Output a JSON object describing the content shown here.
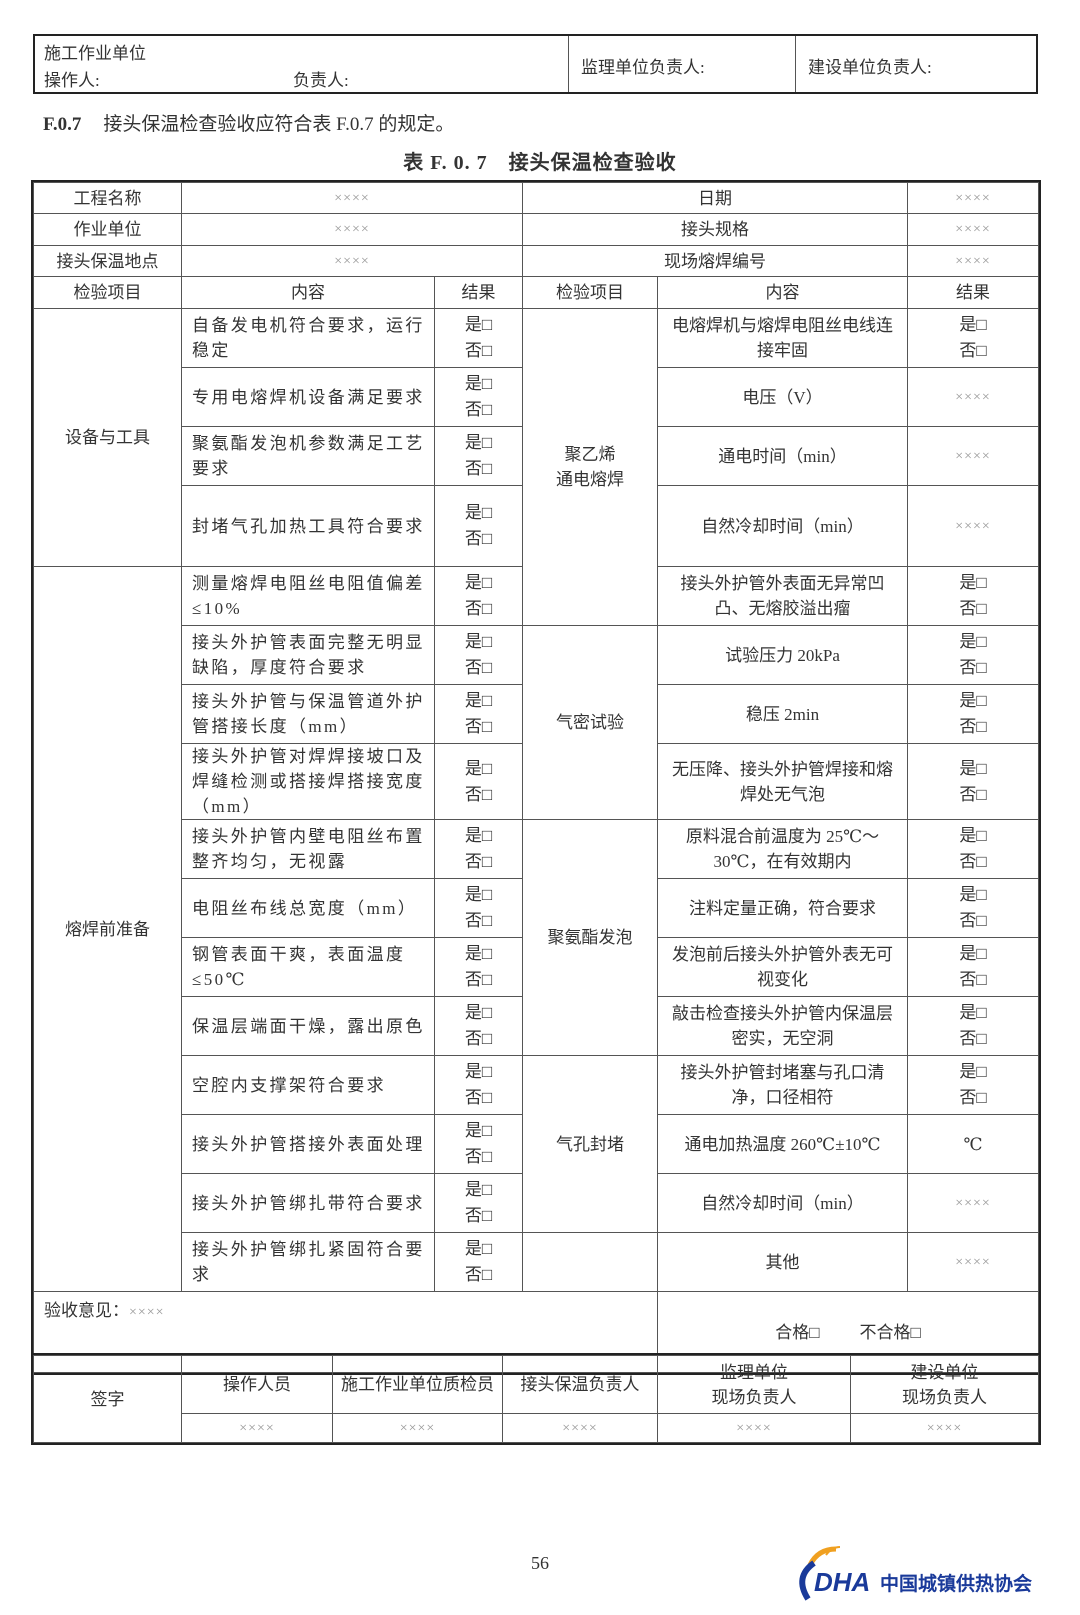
{
  "header_box": {
    "unit_label": "施工作业单位",
    "operator_label": "操作人:",
    "responsible_label": "负责人:",
    "supervisor_label": "监理单位负责人:",
    "owner_label": "建设单位负责人:"
  },
  "clause": {
    "number": "F.0.7",
    "text": "接头保温检查验收应符合表 F.0.7 的规定。"
  },
  "table_title": "表 F. 0. 7　接头保温检查验收",
  "info_rows": [
    {
      "label": "工程名称",
      "value": "××××",
      "label2": "日期",
      "value2": "××××"
    },
    {
      "label": "作业单位",
      "value": "××××",
      "label2": "接头规格",
      "value2": "××××"
    },
    {
      "label": "接头保温地点",
      "value": "××××",
      "label2": "现场熔焊编号",
      "value2": "××××"
    }
  ],
  "headers": [
    "检验项目",
    "内容",
    "结果",
    "检验项目",
    "内容",
    "结果"
  ],
  "yes_label": "是□",
  "no_label": "否□",
  "left_groups": [
    {
      "label": "设备与工具",
      "items": [
        "自备发电机符合要求，运行稳定",
        "专用电熔焊机设备满足要求",
        "聚氨酯发泡机参数满足工艺要求",
        "封堵气孔加热工具符合要求"
      ]
    },
    {
      "label": "熔焊前准备",
      "items": [
        "测量熔焊电阻丝电阻值偏差≤10%",
        "接头外护管表面完整无明显缺陷，厚度符合要求",
        "接头外护管与保温管道外护管搭接长度（mm）",
        "接头外护管对焊焊接坡口及焊缝检测或搭接焊搭接宽度（mm）",
        "接头外护管内壁电阻丝布置整齐均匀，无视露",
        "电阻丝布线总宽度（mm）",
        "钢管表面干爽，表面温度≤50℃",
        "保温层端面干燥，露出原色",
        "空腔内支撑架符合要求",
        "接头外护管搭接外表面处理",
        "接头外护管绑扎带符合要求",
        "接头外护管绑扎紧固符合要求"
      ]
    }
  ],
  "right_groups": [
    {
      "label": "聚乙烯\n通电熔焊",
      "items": [
        {
          "content": "电熔焊机与熔焊电阻丝电线连接牢固",
          "result": "yesno"
        },
        {
          "content": "电压（V）",
          "result": "××××"
        },
        {
          "content": "通电时间（min）",
          "result": "××××"
        },
        {
          "content": "自然冷却时间（min）",
          "result": "××××"
        },
        {
          "content": "接头外护管外表面无异常凹凸、无熔胶溢出瘤",
          "result": "yesno"
        }
      ]
    },
    {
      "label": "气密试验",
      "items": [
        {
          "content": "试验压力 20kPa",
          "result": "yesno"
        },
        {
          "content": "稳压 2min",
          "result": "yesno"
        },
        {
          "content": "无压降、接头外护管焊接和熔焊处无气泡",
          "result": "yesno"
        }
      ]
    },
    {
      "label": "聚氨酯发泡",
      "items": [
        {
          "content": "原料混合前温度为 25℃～30℃，在有效期内",
          "result": "yesno"
        },
        {
          "content": "注料定量正确，符合要求",
          "result": "yesno"
        },
        {
          "content": "发泡前后接头外护管外表无可视变化",
          "result": "yesno"
        },
        {
          "content": "敲击检查接头外护管内保温层密实，无空洞",
          "result": "yesno"
        }
      ]
    },
    {
      "label": "气孔封堵",
      "items": [
        {
          "content": "接头外护管封堵塞与孔口清净，口径相符",
          "result": "yesno"
        },
        {
          "content": "通电加热温度 260℃±10℃",
          "result": "℃"
        },
        {
          "content": "自然冷却时间（min）",
          "result": "××××"
        }
      ]
    },
    {
      "label": "",
      "items": [
        {
          "content": "其他",
          "result": "××××"
        }
      ]
    }
  ],
  "opinion": {
    "label": "验收意见：",
    "value": "××××",
    "pass": "合格□",
    "fail": "不合格□"
  },
  "signature": {
    "label": "签字",
    "roles": [
      "操作人员",
      "施工作业单位质检员",
      "接头保温负责人",
      "监理单位\n现场负责人",
      "建设单位\n现场负责人"
    ],
    "values": [
      "××××",
      "××××",
      "××××",
      "××××",
      "××××"
    ]
  },
  "page_number": "56",
  "logo": {
    "mark": "CDHA",
    "name": "中国城镇供热协会",
    "colors": {
      "orange": "#f0a020",
      "blue": "#1a3a9a"
    }
  }
}
